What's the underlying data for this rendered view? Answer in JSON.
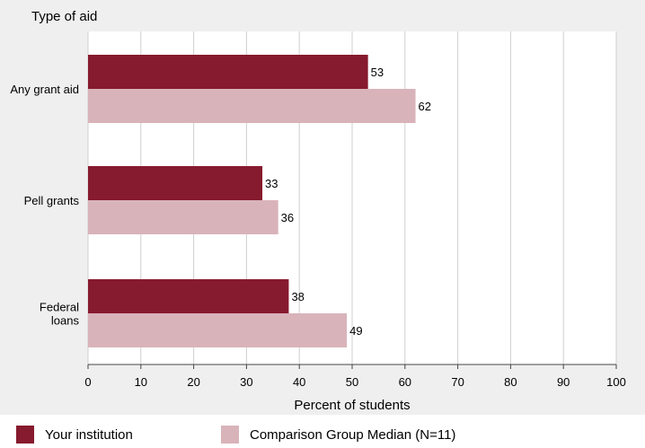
{
  "chart_data": {
    "type": "bar",
    "orientation": "horizontal",
    "title": "Type of aid",
    "xlabel": "Percent of students",
    "ylabel": "Type of aid",
    "categories": [
      "Any grant aid",
      "Pell grants",
      "Federal loans"
    ],
    "series": [
      {
        "name": "Your institution",
        "color": "#861a2e",
        "values": [
          53,
          33,
          38
        ]
      },
      {
        "name": "Comparison Group Median (N=11)",
        "color": "#d9b3ba",
        "values": [
          62,
          36,
          49
        ]
      }
    ],
    "xlim": [
      0,
      100
    ],
    "xticks": [
      0,
      10,
      20,
      30,
      40,
      50,
      60,
      70,
      80,
      90,
      100
    ],
    "grid": true,
    "legend_position": "bottom"
  }
}
